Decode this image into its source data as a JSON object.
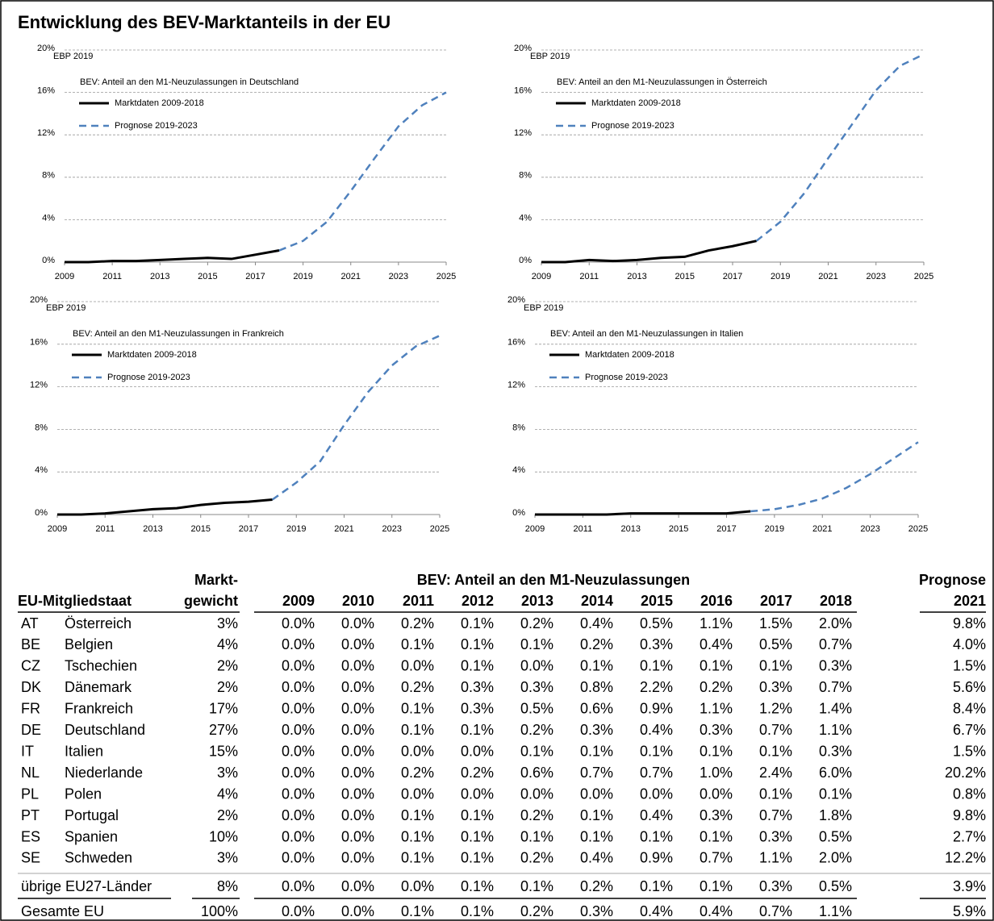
{
  "title": "Entwicklung des BEV-Marktanteils in der EU",
  "chart_data": [
    {
      "type": "line",
      "annotation": "EBP 2019",
      "subtitle": "BEV: Anteil an den M1-Neuzulassungen  in Deutschland",
      "x": [
        2009,
        2010,
        2011,
        2012,
        2013,
        2014,
        2015,
        2016,
        2017,
        2018,
        2019,
        2020,
        2021,
        2022,
        2023,
        2024,
        2025
      ],
      "xlim": [
        2009,
        2025
      ],
      "xticks": [
        2009,
        2011,
        2013,
        2015,
        2017,
        2019,
        2021,
        2023,
        2025
      ],
      "ylim": [
        0,
        20
      ],
      "yticks": [
        {
          "value": 0,
          "label": "0%"
        },
        {
          "value": 4,
          "label": "4%"
        },
        {
          "value": 8,
          "label": "8%"
        },
        {
          "value": 12,
          "label": "12%"
        },
        {
          "value": 16,
          "label": "16%"
        },
        {
          "value": 20,
          "label": "20%"
        }
      ],
      "grid": true,
      "series": [
        {
          "name": "Marktdaten 2009-2018",
          "color": "#000000",
          "dash": false,
          "values": [
            0,
            0,
            0.1,
            0.1,
            0.2,
            0.3,
            0.4,
            0.3,
            0.7,
            1.1,
            null,
            null,
            null,
            null,
            null,
            null,
            null
          ]
        },
        {
          "name": "Prognose 2019-2023",
          "color": "#4f81bd",
          "dash": true,
          "values": [
            null,
            null,
            null,
            null,
            null,
            null,
            null,
            null,
            null,
            1.1,
            2.0,
            3.8,
            6.7,
            9.8,
            12.8,
            14.8,
            16.0
          ]
        }
      ]
    },
    {
      "type": "line",
      "annotation": "EBP 2019",
      "subtitle": "BEV: Anteil an den M1-Neuzulassungen  in Österreich",
      "x": [
        2009,
        2010,
        2011,
        2012,
        2013,
        2014,
        2015,
        2016,
        2017,
        2018,
        2019,
        2020,
        2021,
        2022,
        2023,
        2024,
        2025
      ],
      "xlim": [
        2009,
        2025
      ],
      "xticks": [
        2009,
        2011,
        2013,
        2015,
        2017,
        2019,
        2021,
        2023,
        2025
      ],
      "ylim": [
        0,
        20
      ],
      "yticks": [
        {
          "value": 0,
          "label": "0%"
        },
        {
          "value": 4,
          "label": "4%"
        },
        {
          "value": 8,
          "label": "8%"
        },
        {
          "value": 12,
          "label": "12%"
        },
        {
          "value": 16,
          "label": "16%"
        },
        {
          "value": 20,
          "label": "20%"
        }
      ],
      "grid": true,
      "series": [
        {
          "name": "Marktdaten 2009-2018",
          "color": "#000000",
          "dash": false,
          "values": [
            0,
            0,
            0.2,
            0.1,
            0.2,
            0.4,
            0.5,
            1.1,
            1.5,
            2.0,
            null,
            null,
            null,
            null,
            null,
            null,
            null
          ]
        },
        {
          "name": "Prognose 2019-2023",
          "color": "#4f81bd",
          "dash": true,
          "values": [
            null,
            null,
            null,
            null,
            null,
            null,
            null,
            null,
            null,
            2.0,
            3.8,
            6.5,
            9.8,
            13.0,
            16.2,
            18.5,
            19.6
          ]
        }
      ]
    },
    {
      "type": "line",
      "annotation": "EBP 2019",
      "subtitle": "BEV: Anteil an den M1-Neuzulassungen  in Frankreich",
      "x": [
        2009,
        2010,
        2011,
        2012,
        2013,
        2014,
        2015,
        2016,
        2017,
        2018,
        2019,
        2020,
        2021,
        2022,
        2023,
        2024,
        2025
      ],
      "xlim": [
        2009,
        2025
      ],
      "xticks": [
        2009,
        2011,
        2013,
        2015,
        2017,
        2019,
        2021,
        2023,
        2025
      ],
      "ylim": [
        0,
        20
      ],
      "yticks": [
        {
          "value": 0,
          "label": "0%"
        },
        {
          "value": 4,
          "label": "4%"
        },
        {
          "value": 8,
          "label": "8%"
        },
        {
          "value": 12,
          "label": "12%"
        },
        {
          "value": 16,
          "label": "16%"
        },
        {
          "value": 20,
          "label": "20%"
        }
      ],
      "grid": true,
      "series": [
        {
          "name": "Marktdaten 2009-2018",
          "color": "#000000",
          "dash": false,
          "values": [
            0,
            0,
            0.1,
            0.3,
            0.5,
            0.6,
            0.9,
            1.1,
            1.2,
            1.4,
            null,
            null,
            null,
            null,
            null,
            null,
            null
          ]
        },
        {
          "name": "Prognose 2019-2023",
          "color": "#4f81bd",
          "dash": true,
          "values": [
            null,
            null,
            null,
            null,
            null,
            null,
            null,
            null,
            null,
            1.4,
            3.0,
            5.0,
            8.4,
            11.5,
            14.0,
            15.8,
            16.8
          ]
        }
      ]
    },
    {
      "type": "line",
      "annotation": "EBP 2019",
      "subtitle": "BEV: Anteil an den M1-Neuzulassungen  in Italien",
      "x": [
        2009,
        2010,
        2011,
        2012,
        2013,
        2014,
        2015,
        2016,
        2017,
        2018,
        2019,
        2020,
        2021,
        2022,
        2023,
        2024,
        2025
      ],
      "xlim": [
        2009,
        2025
      ],
      "xticks": [
        2009,
        2011,
        2013,
        2015,
        2017,
        2019,
        2021,
        2023,
        2025
      ],
      "ylim": [
        0,
        20
      ],
      "yticks": [
        {
          "value": 0,
          "label": "0%"
        },
        {
          "value": 4,
          "label": "4%"
        },
        {
          "value": 8,
          "label": "8%"
        },
        {
          "value": 12,
          "label": "12%"
        },
        {
          "value": 16,
          "label": "16%"
        },
        {
          "value": 20,
          "label": "20%"
        }
      ],
      "grid": true,
      "series": [
        {
          "name": "Marktdaten 2009-2018",
          "color": "#000000",
          "dash": false,
          "values": [
            0,
            0,
            0,
            0,
            0.1,
            0.1,
            0.1,
            0.1,
            0.1,
            0.3,
            null,
            null,
            null,
            null,
            null,
            null,
            null
          ]
        },
        {
          "name": "Prognose 2019-2023",
          "color": "#4f81bd",
          "dash": true,
          "values": [
            null,
            null,
            null,
            null,
            null,
            null,
            null,
            null,
            null,
            0.3,
            0.5,
            0.9,
            1.5,
            2.5,
            3.8,
            5.3,
            6.8
          ]
        }
      ]
    }
  ],
  "table": {
    "header_top": [
      "Markt-",
      "BEV: Anteil an den M1-Neuzulassungen",
      "Prognose"
    ],
    "header": [
      "EU-Mitgliedstaat",
      "gewicht",
      "2009",
      "2010",
      "2011",
      "2012",
      "2013",
      "2014",
      "2015",
      "2016",
      "2017",
      "2018",
      "2021"
    ],
    "rows": [
      [
        "AT",
        "Österreich",
        "3%",
        "0.0%",
        "0.0%",
        "0.2%",
        "0.1%",
        "0.2%",
        "0.4%",
        "0.5%",
        "1.1%",
        "1.5%",
        "2.0%",
        "9.8%"
      ],
      [
        "BE",
        "Belgien",
        "4%",
        "0.0%",
        "0.0%",
        "0.1%",
        "0.1%",
        "0.1%",
        "0.2%",
        "0.3%",
        "0.4%",
        "0.5%",
        "0.7%",
        "4.0%"
      ],
      [
        "CZ",
        "Tschechien",
        "2%",
        "0.0%",
        "0.0%",
        "0.0%",
        "0.1%",
        "0.0%",
        "0.1%",
        "0.1%",
        "0.1%",
        "0.1%",
        "0.3%",
        "1.5%"
      ],
      [
        "DK",
        "Dänemark",
        "2%",
        "0.0%",
        "0.0%",
        "0.2%",
        "0.3%",
        "0.3%",
        "0.8%",
        "2.2%",
        "0.2%",
        "0.3%",
        "0.7%",
        "5.6%"
      ],
      [
        "FR",
        "Frankreich",
        "17%",
        "0.0%",
        "0.0%",
        "0.1%",
        "0.3%",
        "0.5%",
        "0.6%",
        "0.9%",
        "1.1%",
        "1.2%",
        "1.4%",
        "8.4%"
      ],
      [
        "DE",
        "Deutschland",
        "27%",
        "0.0%",
        "0.0%",
        "0.1%",
        "0.1%",
        "0.2%",
        "0.3%",
        "0.4%",
        "0.3%",
        "0.7%",
        "1.1%",
        "6.7%"
      ],
      [
        "IT",
        "Italien",
        "15%",
        "0.0%",
        "0.0%",
        "0.0%",
        "0.0%",
        "0.1%",
        "0.1%",
        "0.1%",
        "0.1%",
        "0.1%",
        "0.3%",
        "1.5%"
      ],
      [
        "NL",
        "Niederlande",
        "3%",
        "0.0%",
        "0.0%",
        "0.2%",
        "0.2%",
        "0.6%",
        "0.7%",
        "0.7%",
        "1.0%",
        "2.4%",
        "6.0%",
        "20.2%"
      ],
      [
        "PL",
        "Polen",
        "4%",
        "0.0%",
        "0.0%",
        "0.0%",
        "0.0%",
        "0.0%",
        "0.0%",
        "0.0%",
        "0.0%",
        "0.1%",
        "0.1%",
        "0.8%"
      ],
      [
        "PT",
        "Portugal",
        "2%",
        "0.0%",
        "0.0%",
        "0.1%",
        "0.1%",
        "0.2%",
        "0.1%",
        "0.4%",
        "0.3%",
        "0.7%",
        "1.8%",
        "9.8%"
      ],
      [
        "ES",
        "Spanien",
        "10%",
        "0.0%",
        "0.0%",
        "0.1%",
        "0.1%",
        "0.1%",
        "0.1%",
        "0.1%",
        "0.1%",
        "0.3%",
        "0.5%",
        "2.7%"
      ],
      [
        "SE",
        "Schweden",
        "3%",
        "0.0%",
        "0.0%",
        "0.1%",
        "0.1%",
        "0.2%",
        "0.4%",
        "0.9%",
        "0.7%",
        "1.1%",
        "2.0%",
        "12.2%"
      ]
    ],
    "others": [
      "übrige EU27-Länder",
      "8%",
      "0.0%",
      "0.0%",
      "0.0%",
      "0.1%",
      "0.1%",
      "0.2%",
      "0.1%",
      "0.1%",
      "0.3%",
      "0.5%",
      "3.9%"
    ],
    "total": [
      "Gesamte EU",
      "100%",
      "0.0%",
      "0.0%",
      "0.1%",
      "0.1%",
      "0.2%",
      "0.3%",
      "0.4%",
      "0.4%",
      "0.7%",
      "1.1%",
      "5.9%"
    ]
  }
}
